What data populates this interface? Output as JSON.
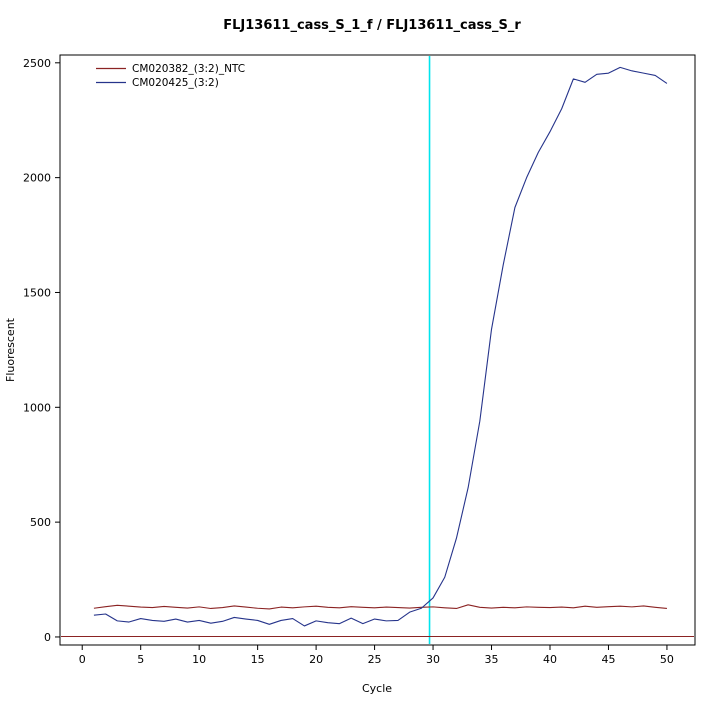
{
  "chart_data": {
    "type": "line",
    "title": "FLJ13611_cass_S_1_f / FLJ13611_cass_S_r",
    "xlabel": "Cycle",
    "ylabel": "Fluorescent",
    "xticks": [
      0,
      5,
      10,
      15,
      20,
      25,
      30,
      35,
      40,
      45,
      50
    ],
    "yticks": [
      0,
      500,
      1000,
      1500,
      2000,
      2500
    ],
    "xlim": [
      -1.9,
      52.4
    ],
    "ylim": [
      -35,
      2534
    ],
    "grid": false,
    "legend_position": "top-left",
    "threshold_line": {
      "x": 29.7,
      "color": "#00E5EE"
    },
    "baseline": {
      "y": 2,
      "color": "#8B2323"
    },
    "x": [
      1,
      2,
      3,
      4,
      5,
      6,
      7,
      8,
      9,
      10,
      11,
      12,
      13,
      14,
      15,
      16,
      17,
      18,
      19,
      20,
      21,
      22,
      23,
      24,
      25,
      26,
      27,
      28,
      29,
      30,
      31,
      32,
      33,
      34,
      35,
      36,
      37,
      38,
      39,
      40,
      41,
      42,
      43,
      44,
      45,
      46,
      47,
      48,
      49,
      50
    ],
    "series": [
      {
        "name": "CM020382_(3:2)_NTC",
        "color": "#8B2323",
        "values": [
          125,
          132,
          138,
          134,
          130,
          128,
          133,
          129,
          126,
          131,
          124,
          128,
          135,
          130,
          125,
          122,
          130,
          127,
          131,
          134,
          129,
          127,
          132,
          129,
          127,
          130,
          128,
          126,
          129,
          131,
          127,
          124,
          140,
          129,
          126,
          129,
          127,
          131,
          129,
          128,
          130,
          127,
          134,
          129,
          132,
          134,
          131,
          135,
          129,
          124
        ]
      },
      {
        "name": "CM020425_(3:2)",
        "color": "#26348B",
        "values": [
          95,
          100,
          70,
          65,
          80,
          72,
          68,
          78,
          65,
          72,
          60,
          68,
          85,
          78,
          72,
          55,
          72,
          80,
          48,
          70,
          62,
          58,
          82,
          58,
          78,
          70,
          72,
          108,
          125,
          170,
          260,
          430,
          650,
          940,
          1340,
          1620,
          1870,
          2000,
          2110,
          2200,
          2300,
          2430,
          2415,
          2450,
          2455,
          2480,
          2465,
          2455,
          2445,
          2410
        ]
      }
    ],
    "axis_color": "#000000",
    "background_color": "#ffffff"
  }
}
